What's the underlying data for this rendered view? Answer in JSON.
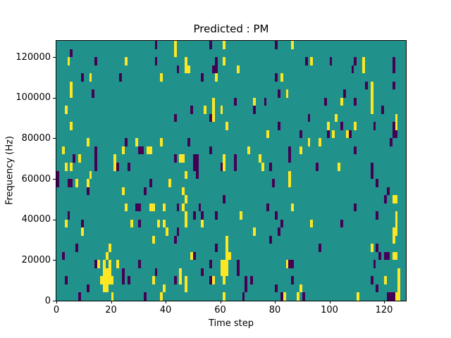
{
  "chart_data": {
    "type": "heatmap",
    "title": "Predicted : PM",
    "xlabel": "Time step",
    "ylabel": "Frequency (Hz)",
    "n_cols": 128,
    "n_rows": 32,
    "x_range": [
      0,
      128
    ],
    "y_range_hz": [
      0,
      128000
    ],
    "x_ticks": [
      0,
      20,
      40,
      60,
      80,
      100,
      120
    ],
    "y_ticks": [
      0,
      20000,
      40000,
      60000,
      80000,
      100000,
      120000
    ],
    "grid": "off",
    "legend": "none",
    "colors": {
      "background": "#21918c",
      "p": "#440154",
      "y": "#fde725"
    },
    "color_meaning": {
      "background": "mid value (teal)",
      "p": "low value (dark purple)",
      "y": "high value (yellow)"
    },
    "cell_freq_hz": 4000,
    "points_format": "[column 0-127 from left, row 0-31 from top, color key]",
    "points": [
      [
        36,
        0,
        "p"
      ],
      [
        43,
        0,
        "y"
      ],
      [
        56,
        0,
        "p"
      ],
      [
        61,
        0,
        "y"
      ],
      [
        80,
        0,
        "p"
      ],
      [
        86,
        0,
        "y"
      ],
      [
        5,
        1,
        "p"
      ],
      [
        43,
        1,
        "y"
      ],
      [
        4,
        2,
        "y"
      ],
      [
        14,
        2,
        "p"
      ],
      [
        25,
        2,
        "y"
      ],
      [
        36,
        2,
        "p"
      ],
      [
        47,
        2,
        "y"
      ],
      [
        58,
        2,
        "p"
      ],
      [
        61,
        2,
        "y"
      ],
      [
        91,
        2,
        "p"
      ],
      [
        93,
        2,
        "y"
      ],
      [
        100,
        2,
        "p"
      ],
      [
        109,
        2,
        "p"
      ],
      [
        112,
        2,
        "y"
      ],
      [
        123,
        2,
        "p"
      ],
      [
        44,
        3,
        "p"
      ],
      [
        47,
        3,
        "y"
      ],
      [
        48,
        3,
        "y"
      ],
      [
        57,
        3,
        "p"
      ],
      [
        58,
        3,
        "p"
      ],
      [
        66,
        3,
        "y"
      ],
      [
        108,
        3,
        "p"
      ],
      [
        112,
        3,
        "y"
      ],
      [
        123,
        3,
        "p"
      ],
      [
        9,
        4,
        "p"
      ],
      [
        12,
        4,
        "y"
      ],
      [
        23,
        4,
        "p"
      ],
      [
        38,
        4,
        "y"
      ],
      [
        53,
        4,
        "p"
      ],
      [
        58,
        4,
        "y"
      ],
      [
        80,
        4,
        "p"
      ],
      [
        82,
        4,
        "y"
      ],
      [
        5,
        5,
        "y"
      ],
      [
        113,
        5,
        "p"
      ],
      [
        115,
        5,
        "y"
      ],
      [
        123,
        5,
        "p"
      ],
      [
        5,
        6,
        "y"
      ],
      [
        13,
        6,
        "p"
      ],
      [
        81,
        6,
        "p"
      ],
      [
        84,
        6,
        "y"
      ],
      [
        105,
        6,
        "p"
      ],
      [
        115,
        6,
        "y"
      ],
      [
        57,
        7,
        "y"
      ],
      [
        65,
        7,
        "p"
      ],
      [
        72,
        7,
        "y"
      ],
      [
        76,
        7,
        "p"
      ],
      [
        98,
        7,
        "p"
      ],
      [
        104,
        7,
        "y"
      ],
      [
        109,
        7,
        "p"
      ],
      [
        115,
        7,
        "y"
      ],
      [
        3,
        8,
        "y"
      ],
      [
        49,
        8,
        "p"
      ],
      [
        54,
        8,
        "y"
      ],
      [
        57,
        8,
        "y"
      ],
      [
        60,
        8,
        "y"
      ],
      [
        72,
        8,
        "p"
      ],
      [
        115,
        8,
        "y"
      ],
      [
        119,
        8,
        "p"
      ],
      [
        43,
        9,
        "p"
      ],
      [
        56,
        9,
        "p"
      ],
      [
        57,
        9,
        "y"
      ],
      [
        92,
        9,
        "p"
      ],
      [
        102,
        9,
        "y"
      ],
      [
        124,
        9,
        "y"
      ],
      [
        5,
        10,
        "y"
      ],
      [
        62,
        10,
        "y"
      ],
      [
        81,
        10,
        "p"
      ],
      [
        99,
        10,
        "y"
      ],
      [
        104,
        10,
        "p"
      ],
      [
        109,
        10,
        "y"
      ],
      [
        116,
        10,
        "p"
      ],
      [
        123,
        10,
        "p"
      ],
      [
        124,
        10,
        "y"
      ],
      [
        77,
        11,
        "y"
      ],
      [
        89,
        11,
        "p"
      ],
      [
        99,
        11,
        "p"
      ],
      [
        101,
        11,
        "y"
      ],
      [
        106,
        11,
        "y"
      ],
      [
        107,
        11,
        "p"
      ],
      [
        123,
        11,
        "p"
      ],
      [
        124,
        11,
        "p"
      ],
      [
        11,
        12,
        "y"
      ],
      [
        25,
        12,
        "p"
      ],
      [
        29,
        12,
        "y"
      ],
      [
        38,
        12,
        "y"
      ],
      [
        48,
        12,
        "p"
      ],
      [
        92,
        12,
        "y"
      ],
      [
        96,
        12,
        "y"
      ],
      [
        122,
        12,
        "p"
      ],
      [
        2,
        13,
        "y"
      ],
      [
        14,
        13,
        "p"
      ],
      [
        24,
        13,
        "y"
      ],
      [
        30,
        13,
        "p"
      ],
      [
        31,
        13,
        "p"
      ],
      [
        33,
        13,
        "y"
      ],
      [
        34,
        13,
        "y"
      ],
      [
        56,
        13,
        "p"
      ],
      [
        70,
        13,
        "y"
      ],
      [
        85,
        13,
        "p"
      ],
      [
        89,
        13,
        "y"
      ],
      [
        109,
        13,
        "p"
      ],
      [
        6,
        14,
        "p"
      ],
      [
        8,
        14,
        "y"
      ],
      [
        14,
        14,
        "p"
      ],
      [
        21,
        14,
        "y"
      ],
      [
        43,
        14,
        "p"
      ],
      [
        45,
        14,
        "y"
      ],
      [
        46,
        14,
        "y"
      ],
      [
        50,
        14,
        "p"
      ],
      [
        51,
        14,
        "p"
      ],
      [
        61,
        14,
        "y"
      ],
      [
        65,
        14,
        "p"
      ],
      [
        74,
        14,
        "y"
      ],
      [
        85,
        14,
        "p"
      ],
      [
        3,
        15,
        "y"
      ],
      [
        5,
        15,
        "y"
      ],
      [
        14,
        15,
        "p"
      ],
      [
        21,
        15,
        "y"
      ],
      [
        22,
        15,
        "p"
      ],
      [
        26,
        15,
        "p"
      ],
      [
        50,
        15,
        "p"
      ],
      [
        51,
        15,
        "p"
      ],
      [
        60,
        15,
        "p"
      ],
      [
        61,
        15,
        "y"
      ],
      [
        65,
        15,
        "p"
      ],
      [
        75,
        15,
        "y"
      ],
      [
        78,
        15,
        "p"
      ],
      [
        95,
        15,
        "p"
      ],
      [
        103,
        15,
        "y"
      ],
      [
        115,
        15,
        "p"
      ],
      [
        0,
        16,
        "p"
      ],
      [
        12,
        16,
        "y"
      ],
      [
        47,
        16,
        "y"
      ],
      [
        51,
        16,
        "p"
      ],
      [
        85,
        16,
        "y"
      ],
      [
        115,
        16,
        "p"
      ],
      [
        0,
        17,
        "p"
      ],
      [
        4,
        17,
        "p"
      ],
      [
        5,
        17,
        "p"
      ],
      [
        7,
        17,
        "y"
      ],
      [
        11,
        17,
        "y"
      ],
      [
        34,
        17,
        "p"
      ],
      [
        41,
        17,
        "y"
      ],
      [
        79,
        17,
        "p"
      ],
      [
        85,
        17,
        "y"
      ],
      [
        117,
        17,
        "p"
      ],
      [
        11,
        18,
        "p"
      ],
      [
        24,
        18,
        "y"
      ],
      [
        32,
        18,
        "p"
      ],
      [
        46,
        18,
        "y"
      ],
      [
        121,
        18,
        "p"
      ],
      [
        47,
        19,
        "y"
      ],
      [
        61,
        19,
        "p"
      ],
      [
        120,
        19,
        "p"
      ],
      [
        123,
        19,
        "y"
      ],
      [
        124,
        19,
        "y"
      ],
      [
        25,
        20,
        "y"
      ],
      [
        29,
        20,
        "p"
      ],
      [
        30,
        20,
        "p"
      ],
      [
        34,
        20,
        "y"
      ],
      [
        35,
        20,
        "y"
      ],
      [
        39,
        20,
        "y"
      ],
      [
        44,
        20,
        "p"
      ],
      [
        46,
        20,
        "y"
      ],
      [
        52,
        20,
        "p"
      ],
      [
        77,
        20,
        "p"
      ],
      [
        86,
        20,
        "y"
      ],
      [
        109,
        20,
        "p"
      ],
      [
        4,
        21,
        "p"
      ],
      [
        47,
        21,
        "y"
      ],
      [
        50,
        21,
        "p"
      ],
      [
        53,
        21,
        "p"
      ],
      [
        58,
        21,
        "p"
      ],
      [
        67,
        21,
        "y"
      ],
      [
        80,
        21,
        "p"
      ],
      [
        117,
        21,
        "p"
      ],
      [
        124,
        21,
        "y"
      ],
      [
        3,
        22,
        "y"
      ],
      [
        9,
        22,
        "p"
      ],
      [
        27,
        22,
        "y"
      ],
      [
        30,
        22,
        "p"
      ],
      [
        37,
        22,
        "y"
      ],
      [
        39,
        22,
        "y"
      ],
      [
        47,
        22,
        "y"
      ],
      [
        53,
        22,
        "y"
      ],
      [
        82,
        22,
        "p"
      ],
      [
        93,
        22,
        "y"
      ],
      [
        104,
        22,
        "p"
      ],
      [
        124,
        22,
        "y"
      ],
      [
        9,
        23,
        "y"
      ],
      [
        40,
        23,
        "y"
      ],
      [
        44,
        23,
        "p"
      ],
      [
        72,
        23,
        "y"
      ],
      [
        81,
        23,
        "p"
      ],
      [
        123,
        23,
        "y"
      ],
      [
        124,
        23,
        "y"
      ],
      [
        35,
        24,
        "y"
      ],
      [
        43,
        24,
        "p"
      ],
      [
        62,
        24,
        "y"
      ],
      [
        78,
        24,
        "p"
      ],
      [
        123,
        24,
        "y"
      ],
      [
        7,
        25,
        "p"
      ],
      [
        19,
        25,
        "y"
      ],
      [
        58,
        25,
        "p"
      ],
      [
        62,
        25,
        "y"
      ],
      [
        96,
        25,
        "p"
      ],
      [
        115,
        25,
        "y"
      ],
      [
        117,
        25,
        "p"
      ],
      [
        2,
        26,
        "p"
      ],
      [
        18,
        26,
        "y"
      ],
      [
        49,
        26,
        "y"
      ],
      [
        50,
        26,
        "p"
      ],
      [
        62,
        26,
        "y"
      ],
      [
        63,
        26,
        "y"
      ],
      [
        118,
        26,
        "p"
      ],
      [
        120,
        26,
        "p"
      ],
      [
        121,
        26,
        "p"
      ],
      [
        123,
        26,
        "y"
      ],
      [
        124,
        26,
        "y"
      ],
      [
        14,
        27,
        "p"
      ],
      [
        15,
        27,
        "y"
      ],
      [
        17,
        27,
        "y"
      ],
      [
        19,
        27,
        "y"
      ],
      [
        22,
        27,
        "y"
      ],
      [
        30,
        27,
        "p"
      ],
      [
        56,
        27,
        "p"
      ],
      [
        60,
        27,
        "y"
      ],
      [
        61,
        27,
        "y"
      ],
      [
        62,
        27,
        "y"
      ],
      [
        66,
        27,
        "p"
      ],
      [
        84,
        27,
        "y"
      ],
      [
        85,
        27,
        "p"
      ],
      [
        86,
        27,
        "p"
      ],
      [
        116,
        27,
        "p"
      ],
      [
        17,
        28,
        "y"
      ],
      [
        18,
        28,
        "y"
      ],
      [
        19,
        28,
        "y"
      ],
      [
        24,
        28,
        "p"
      ],
      [
        36,
        28,
        "p"
      ],
      [
        45,
        28,
        "y"
      ],
      [
        53,
        28,
        "p"
      ],
      [
        60,
        28,
        "y"
      ],
      [
        61,
        28,
        "y"
      ],
      [
        62,
        28,
        "y"
      ],
      [
        66,
        28,
        "p"
      ],
      [
        125,
        28,
        "y"
      ],
      [
        3,
        29,
        "p"
      ],
      [
        16,
        29,
        "y"
      ],
      [
        17,
        29,
        "y"
      ],
      [
        18,
        29,
        "y"
      ],
      [
        19,
        29,
        "y"
      ],
      [
        20,
        29,
        "y"
      ],
      [
        24,
        29,
        "p"
      ],
      [
        26,
        29,
        "p"
      ],
      [
        35,
        29,
        "y"
      ],
      [
        43,
        29,
        "p"
      ],
      [
        45,
        29,
        "y"
      ],
      [
        47,
        29,
        "y"
      ],
      [
        56,
        29,
        "p"
      ],
      [
        57,
        29,
        "y"
      ],
      [
        61,
        29,
        "y"
      ],
      [
        69,
        29,
        "p"
      ],
      [
        71,
        29,
        "p"
      ],
      [
        86,
        29,
        "p"
      ],
      [
        115,
        29,
        "p"
      ],
      [
        120,
        29,
        "y"
      ],
      [
        125,
        29,
        "y"
      ],
      [
        11,
        30,
        "p"
      ],
      [
        17,
        30,
        "y"
      ],
      [
        18,
        30,
        "y"
      ],
      [
        39,
        30,
        "y"
      ],
      [
        47,
        30,
        "y"
      ],
      [
        69,
        30,
        "p"
      ],
      [
        80,
        30,
        "p"
      ],
      [
        89,
        30,
        "y"
      ],
      [
        117,
        30,
        "p"
      ],
      [
        125,
        30,
        "y"
      ],
      [
        8,
        31,
        "p"
      ],
      [
        20,
        31,
        "y"
      ],
      [
        32,
        31,
        "p"
      ],
      [
        38,
        31,
        "y"
      ],
      [
        61,
        31,
        "y"
      ],
      [
        68,
        31,
        "p"
      ],
      [
        82,
        31,
        "p"
      ],
      [
        83,
        31,
        "y"
      ],
      [
        88,
        31,
        "y"
      ],
      [
        90,
        31,
        "p"
      ],
      [
        110,
        31,
        "y"
      ],
      [
        121,
        31,
        "p"
      ],
      [
        122,
        31,
        "p"
      ],
      [
        123,
        31,
        "p"
      ],
      [
        124,
        31,
        "y"
      ],
      [
        125,
        31,
        "y"
      ]
    ]
  }
}
